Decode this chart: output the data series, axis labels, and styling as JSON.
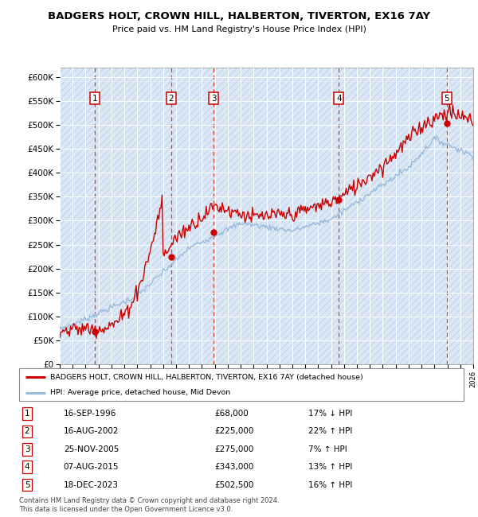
{
  "title": "BADGERS HOLT, CROWN HILL, HALBERTON, TIVERTON, EX16 7AY",
  "subtitle": "Price paid vs. HM Land Registry's House Price Index (HPI)",
  "background_color": "#dce9f5",
  "ylim": [
    0,
    620000
  ],
  "yticks": [
    0,
    50000,
    100000,
    150000,
    200000,
    250000,
    300000,
    350000,
    400000,
    450000,
    500000,
    550000,
    600000
  ],
  "ytick_labels": [
    "£0",
    "£50K",
    "£100K",
    "£150K",
    "£200K",
    "£250K",
    "£300K",
    "£350K",
    "£400K",
    "£450K",
    "£500K",
    "£550K",
    "£600K"
  ],
  "sale_dates": [
    1996.71,
    2002.62,
    2005.9,
    2015.6,
    2023.96
  ],
  "sale_prices": [
    68000,
    225000,
    275000,
    343000,
    502500
  ],
  "sale_labels": [
    "1",
    "2",
    "3",
    "4",
    "5"
  ],
  "sale_info": [
    {
      "num": "1",
      "date": "16-SEP-1996",
      "price": "£68,000",
      "pct": "17% ↓ HPI"
    },
    {
      "num": "2",
      "date": "16-AUG-2002",
      "price": "£225,000",
      "pct": "22% ↑ HPI"
    },
    {
      "num": "3",
      "date": "25-NOV-2005",
      "price": "£275,000",
      "pct": "7% ↑ HPI"
    },
    {
      "num": "4",
      "date": "07-AUG-2015",
      "price": "£343,000",
      "pct": "13% ↑ HPI"
    },
    {
      "num": "5",
      "date": "18-DEC-2023",
      "price": "£502,500",
      "pct": "16% ↑ HPI"
    }
  ],
  "legend_line1": "BADGERS HOLT, CROWN HILL, HALBERTON, TIVERTON, EX16 7AY (detached house)",
  "legend_line2": "HPI: Average price, detached house, Mid Devon",
  "footer": "Contains HM Land Registry data © Crown copyright and database right 2024.\nThis data is licensed under the Open Government Licence v3.0.",
  "house_color": "#cc0000",
  "hpi_color": "#99bbdd",
  "xmin": 1994,
  "xmax": 2026
}
